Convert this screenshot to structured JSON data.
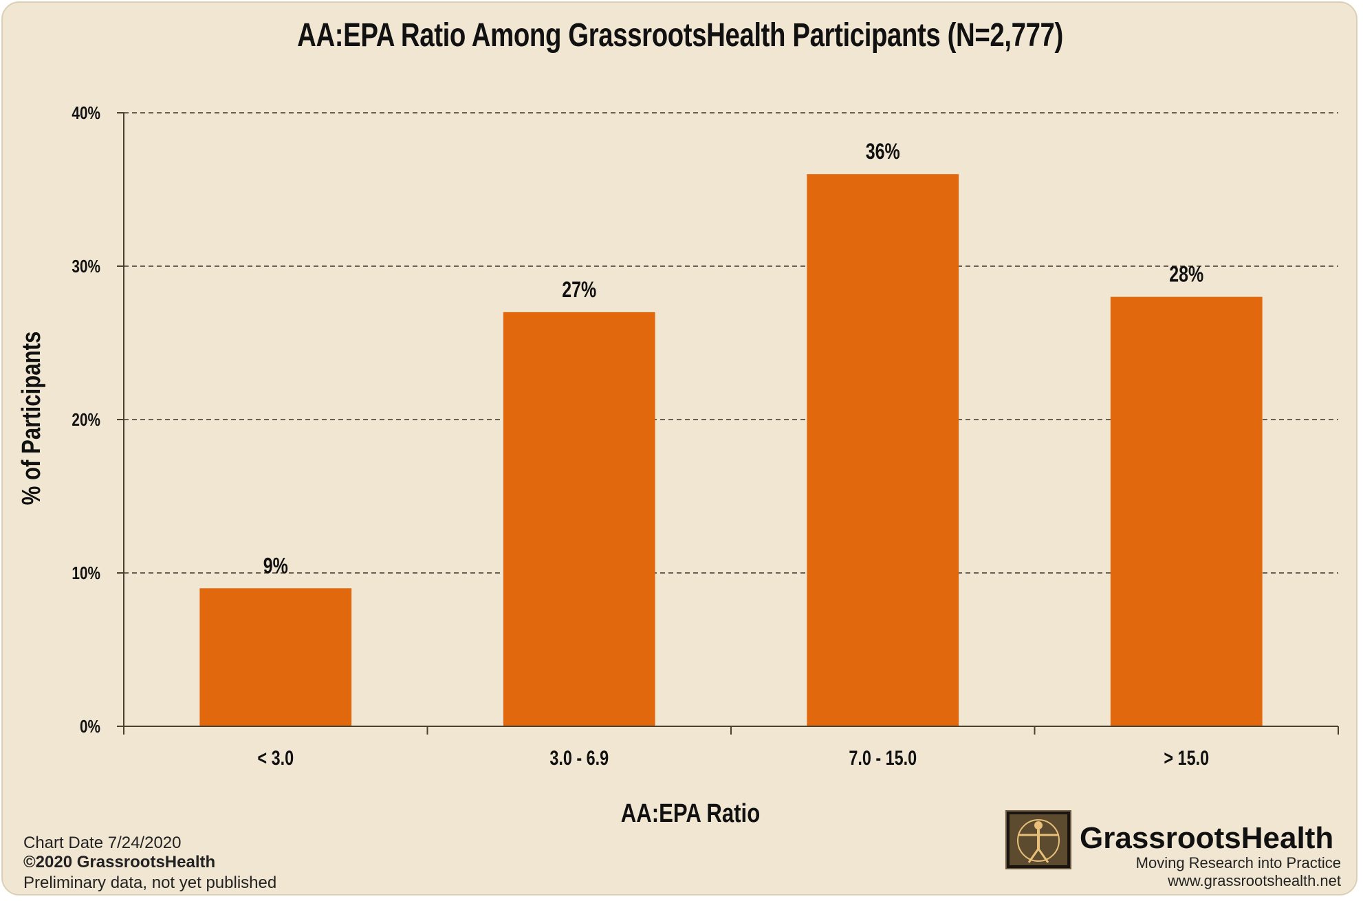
{
  "chart_data": {
    "type": "bar",
    "title": "AA:EPA Ratio Among GrassrootsHealth Participants (N=2,777)",
    "xlabel": "AA:EPA Ratio",
    "ylabel": "% of Participants",
    "categories": [
      "< 3.0",
      "3.0 - 6.9",
      "7.0 - 15.0",
      "> 15.0"
    ],
    "values": [
      9,
      27,
      36,
      28
    ],
    "data_labels": [
      "9%",
      "27%",
      "36%",
      "28%"
    ],
    "ylim": [
      0,
      40
    ],
    "yticks": [
      0,
      10,
      20,
      30,
      40
    ],
    "ytick_labels": [
      "0%",
      "10%",
      "20%",
      "30%",
      "40%"
    ],
    "grid": "horizontal-dashed",
    "bar_color": "#e1680d"
  },
  "footer": {
    "chart_date": "Chart Date 7/24/2020",
    "copyright": "©2020 GrassrootsHealth",
    "note": "Preliminary data, not yet published"
  },
  "logo": {
    "name": "GrassrootsHealth",
    "tagline": "Moving Research into Practice",
    "url": "www.grassrootshealth.net"
  },
  "colors": {
    "background": "#f1e6d2",
    "bar": "#e1680d",
    "axis": "#4a4030"
  }
}
